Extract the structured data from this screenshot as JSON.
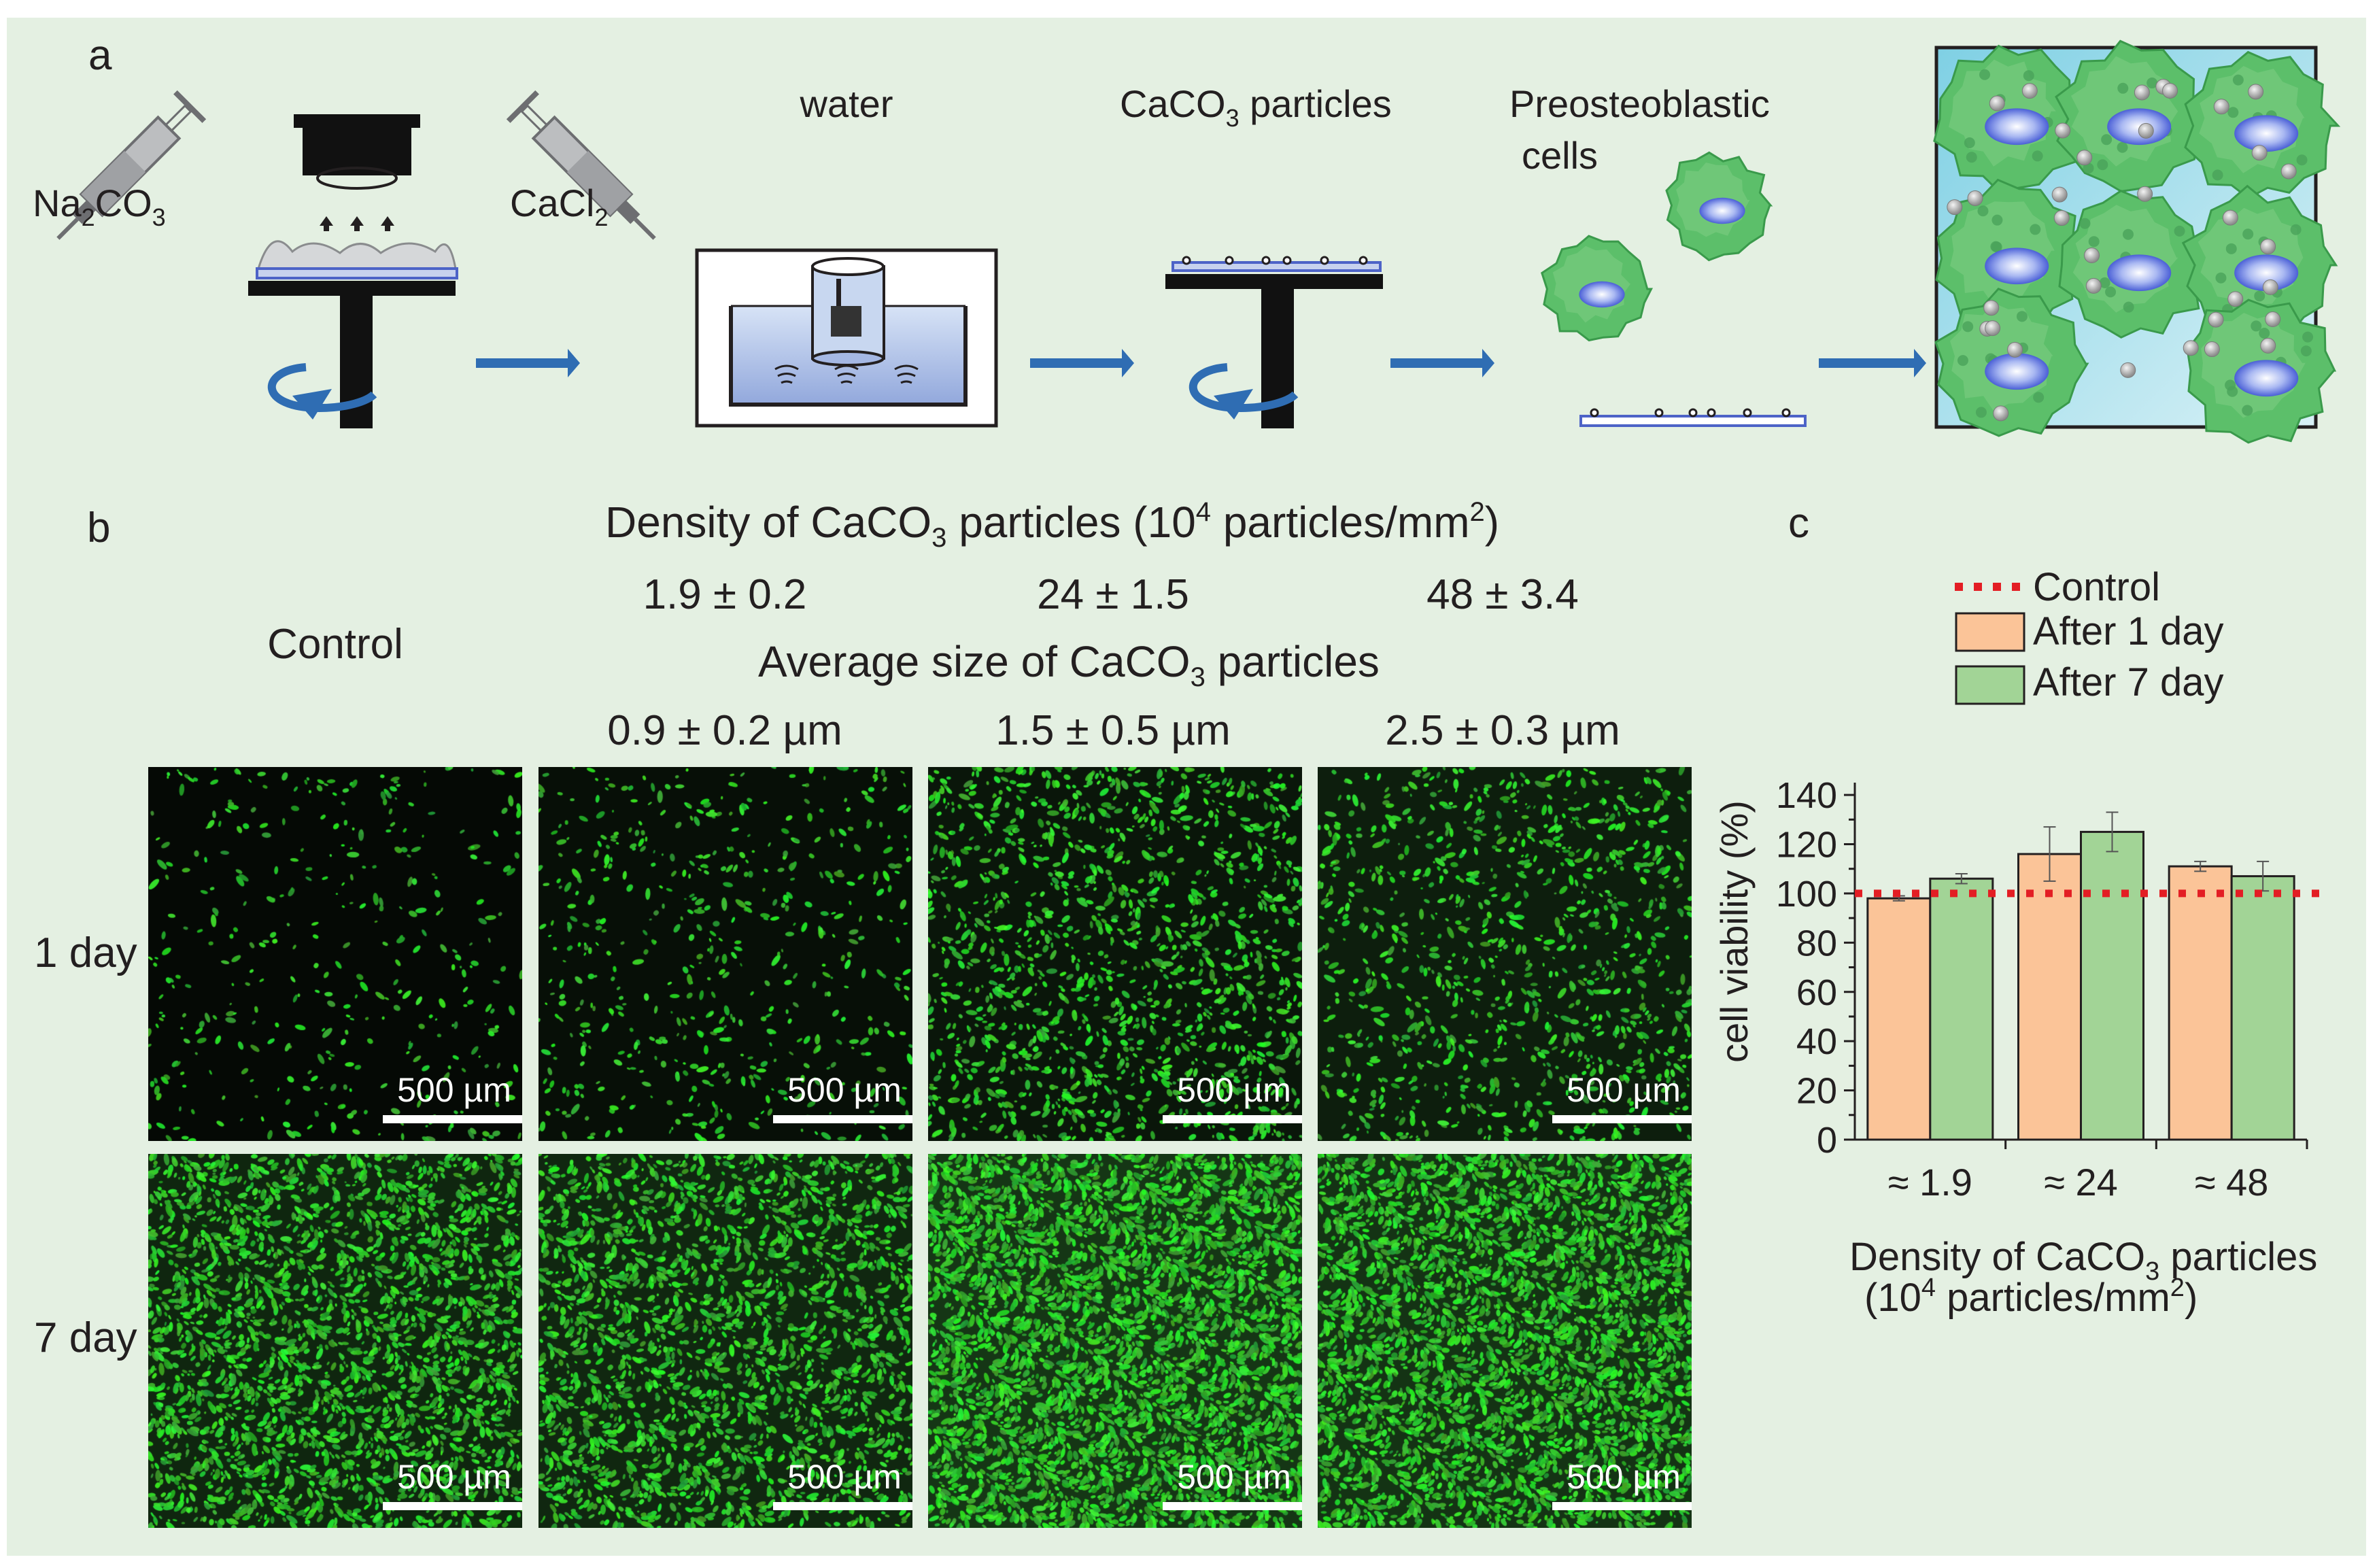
{
  "panel_a": {
    "letter": "a",
    "reagent_left": [
      "Na",
      "2",
      "CO",
      "3"
    ],
    "reagent_right": [
      "CaCl",
      "2"
    ],
    "water_label": "water",
    "particles_label": [
      "CaCO",
      "3",
      " particles"
    ],
    "cells_label_line1": "Preosteoblastic",
    "cells_label_line2": "cells"
  },
  "panel_b": {
    "letter": "b",
    "density_title": [
      "Density of CaCO",
      "3",
      " particles (10",
      "4",
      " particles/mm",
      "2",
      ")"
    ],
    "density_values": [
      "1.9 ± 0.2",
      "24 ± 1.5",
      "48 ± 3.4"
    ],
    "size_title": [
      "Average size of CaCO",
      "3",
      " particles"
    ],
    "size_values": [
      "0.9 ± 0.2 µm",
      "1.5 ± 0.5 µm",
      "2.5 ± 0.3 µm"
    ],
    "control_label": "Control",
    "row_labels": [
      "1 day",
      "7 day"
    ],
    "scale_bar": "500 µm"
  },
  "panel_c": {
    "letter": "c",
    "legend": {
      "control": "Control",
      "day1": "After 1 day",
      "day7": "After 7 day"
    },
    "colors": {
      "day1": "#fbc498",
      "day7": "#a2d496",
      "control": "#e31e24"
    }
  },
  "chart_data": {
    "type": "bar",
    "categories": [
      "≈ 1.9",
      "≈ 24",
      "≈ 48"
    ],
    "series": [
      {
        "name": "After 1 day",
        "values": [
          98,
          116,
          111
        ],
        "errors": [
          1,
          11,
          2
        ]
      },
      {
        "name": "After 7 day",
        "values": [
          106,
          125,
          107
        ],
        "errors": [
          2,
          8,
          6
        ]
      }
    ],
    "reference_line": {
      "name": "Control",
      "value": 100,
      "style": "dotted"
    },
    "ylabel": "cell viability (%)",
    "xlabel": [
      "Density of CaCO",
      "3",
      " particles"
    ],
    "xlabel_line2": [
      "(10",
      "4",
      " particles/mm",
      "2",
      ")"
    ],
    "yticks": [
      0,
      20,
      40,
      60,
      80,
      100,
      120,
      140
    ],
    "ylim": [
      0,
      145
    ],
    "grid": false,
    "legend_position": "top"
  }
}
